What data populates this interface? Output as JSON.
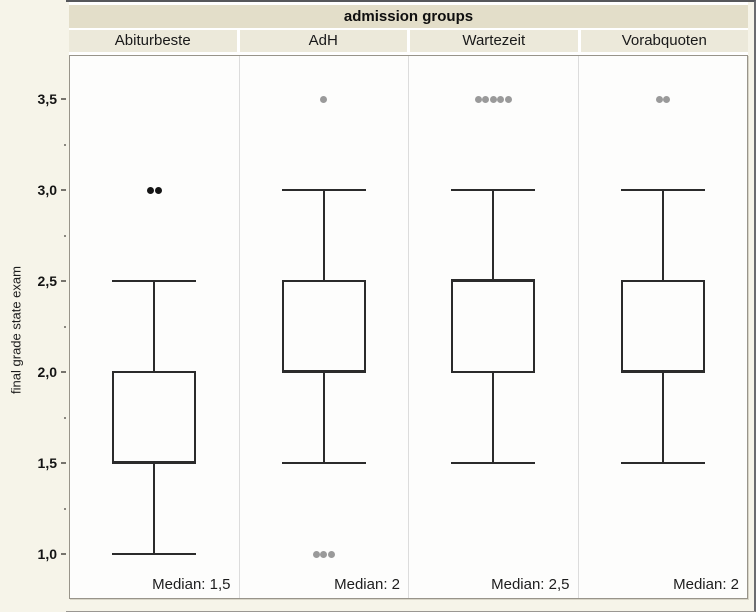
{
  "title": "admission groups",
  "axis": {
    "label": "final grade state exam",
    "tick_labels": [
      "3,5",
      "3,0",
      "2,5",
      "2,0",
      "1,5",
      "1,0"
    ],
    "tick_values": [
      3.5,
      3.0,
      2.5,
      2.0,
      1.5,
      1.0
    ],
    "minor_tick_values": [
      3.25,
      2.75,
      2.25,
      1.75,
      1.25
    ]
  },
  "colors": {
    "title_band_bg": "#e3dec9",
    "header_band_bg": "#ece9da",
    "page_bg": "#f6f4e9",
    "plot_bg": "#fdfdfc",
    "line": "#2b2b2b",
    "outlier_gray": "#9a9a9a",
    "outlier_black": "#151515"
  },
  "chart_data": {
    "type": "boxplot",
    "title": "admission groups",
    "ylabel": "final grade state exam",
    "ylim": [
      0.75,
      3.74
    ],
    "grid": false,
    "decimal_style": "comma",
    "categories": [
      "Abiturbeste",
      "AdH",
      "Wartezeit",
      "Vorabquoten"
    ],
    "panels": [
      {
        "label": "Abiturbeste",
        "whisker_low": 1.0,
        "q1": 1.5,
        "median": 1.5,
        "q3": 2.0,
        "whisker_high": 2.5,
        "outliers": [
          {
            "value": 3.0,
            "count": 2,
            "color": "black"
          }
        ],
        "median_label": "Median: 1,5"
      },
      {
        "label": "AdH",
        "whisker_low": 1.5,
        "q1": 2.0,
        "median": 2.0,
        "q3": 2.5,
        "whisker_high": 3.0,
        "outliers": [
          {
            "value": 3.5,
            "count": 1,
            "color": "gray"
          },
          {
            "value": 1.0,
            "count": 3,
            "color": "gray"
          }
        ],
        "median_label": "Median: 2"
      },
      {
        "label": "Wartezeit",
        "whisker_low": 1.5,
        "q1": 2.0,
        "median": 2.5,
        "q3": 2.5,
        "whisker_high": 3.0,
        "outliers": [
          {
            "value": 3.5,
            "count": 5,
            "color": "gray"
          }
        ],
        "median_label": "Median: 2,5"
      },
      {
        "label": "Vorabquoten",
        "whisker_low": 1.5,
        "q1": 2.0,
        "median": 2.0,
        "q3": 2.5,
        "whisker_high": 3.0,
        "outliers": [
          {
            "value": 3.5,
            "count": 2,
            "color": "gray"
          }
        ],
        "median_label": "Median: 2"
      }
    ]
  }
}
